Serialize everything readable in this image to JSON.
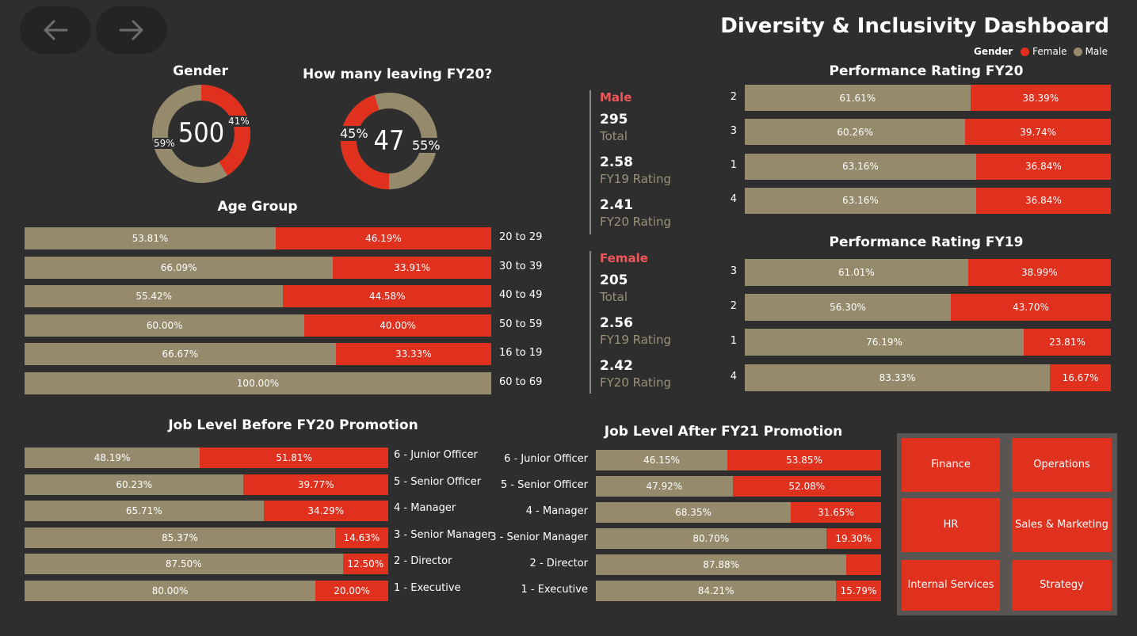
{
  "nav": {
    "back_icon": "arrow-left-icon",
    "forward_icon": "arrow-right-icon"
  },
  "title": "Diversity & Inclusivity Dashboard",
  "legend": {
    "title": "Gender",
    "female": "Female",
    "male": "Male"
  },
  "colors": {
    "female": "#e0301e",
    "male": "#958b6c",
    "background": "#2e2e2e",
    "accent_text": "#f0575a"
  },
  "gender_donut": {
    "title": "Gender",
    "center": "500",
    "female_pct": "41%",
    "male_pct": "59%",
    "female_value": 41,
    "male_value": 59
  },
  "leaving_donut": {
    "title": "How many leaving FY20?",
    "center": "47",
    "female_pct": "45%",
    "male_pct": "55%",
    "female_value": 45,
    "male_value": 55
  },
  "age_group": {
    "title": "Age Group",
    "rows": [
      {
        "label": "20 to 29",
        "male": "53.81%",
        "female": "46.19%",
        "mv": 53.81
      },
      {
        "label": "30 to 39",
        "male": "66.09%",
        "female": "33.91%",
        "mv": 66.09
      },
      {
        "label": "40 to 49",
        "male": "55.42%",
        "female": "44.58%",
        "mv": 55.42
      },
      {
        "label": "50 to 59",
        "male": "60.00%",
        "female": "40.00%",
        "mv": 60.0
      },
      {
        "label": "16 to 19",
        "male": "66.67%",
        "female": "33.33%",
        "mv": 66.67
      },
      {
        "label": "60 to 69",
        "male": "100.00%",
        "female": "",
        "mv": 100
      }
    ]
  },
  "male_card": {
    "head": "Male",
    "total": "295",
    "total_label": "Total",
    "fy19": "2.58",
    "fy19_label": "FY19 Rating",
    "fy20": "2.41",
    "fy20_label": "FY20 Rating"
  },
  "female_card": {
    "head": "Female",
    "total": "205",
    "total_label": "Total",
    "fy19": "2.56",
    "fy19_label": "FY19 Rating",
    "fy20": "2.42",
    "fy20_label": "FY20 Rating"
  },
  "perf_fy20": {
    "title": "Performance Rating FY20",
    "rows": [
      {
        "label": "2",
        "male": "61.61%",
        "female": "38.39%",
        "mv": 61.61
      },
      {
        "label": "3",
        "male": "60.26%",
        "female": "39.74%",
        "mv": 60.26
      },
      {
        "label": "1",
        "male": "63.16%",
        "female": "36.84%",
        "mv": 63.16
      },
      {
        "label": "4",
        "male": "63.16%",
        "female": "36.84%",
        "mv": 63.16
      }
    ]
  },
  "perf_fy19": {
    "title": "Performance Rating FY19",
    "rows": [
      {
        "label": "3",
        "male": "61.01%",
        "female": "38.99%",
        "mv": 61.01
      },
      {
        "label": "2",
        "male": "56.30%",
        "female": "43.70%",
        "mv": 56.3
      },
      {
        "label": "1",
        "male": "76.19%",
        "female": "23.81%",
        "mv": 76.19
      },
      {
        "label": "4",
        "male": "83.33%",
        "female": "16.67%",
        "mv": 83.33
      }
    ]
  },
  "job_before": {
    "title": "Job Level Before FY20 Promotion",
    "rows": [
      {
        "label": "6 - Junior Officer",
        "male": "48.19%",
        "female": "51.81%",
        "mv": 48.19
      },
      {
        "label": "5 - Senior Officer",
        "male": "60.23%",
        "female": "39.77%",
        "mv": 60.23
      },
      {
        "label": "4 - Manager",
        "male": "65.71%",
        "female": "34.29%",
        "mv": 65.71
      },
      {
        "label": "3 - Senior Manager",
        "male": "85.37%",
        "female": "14.63%",
        "mv": 85.37
      },
      {
        "label": "2 - Director",
        "male": "87.50%",
        "female": "12.50%",
        "mv": 87.5
      },
      {
        "label": "1 - Executive",
        "male": "80.00%",
        "female": "20.00%",
        "mv": 80.0
      }
    ]
  },
  "job_after": {
    "title": "Job Level After FY21 Promotion",
    "rows": [
      {
        "label": "6 - Junior Officer",
        "male": "46.15%",
        "female": "53.85%",
        "mv": 46.15
      },
      {
        "label": "5 - Senior Officer",
        "male": "47.92%",
        "female": "52.08%",
        "mv": 47.92
      },
      {
        "label": "4 - Manager",
        "male": "68.35%",
        "female": "31.65%",
        "mv": 68.35
      },
      {
        "label": "3 - Senior Manager",
        "male": "80.70%",
        "female": "19.30%",
        "mv": 80.7
      },
      {
        "label": "2 - Director",
        "male": "87.88%",
        "female": "",
        "mv": 87.88
      },
      {
        "label": "1 - Executive",
        "male": "84.21%",
        "female": "15.79%",
        "mv": 84.21
      }
    ]
  },
  "departments": [
    "Finance",
    "Operations",
    "HR",
    "Sales & Marketing",
    "Internal Services",
    "Strategy"
  ]
}
